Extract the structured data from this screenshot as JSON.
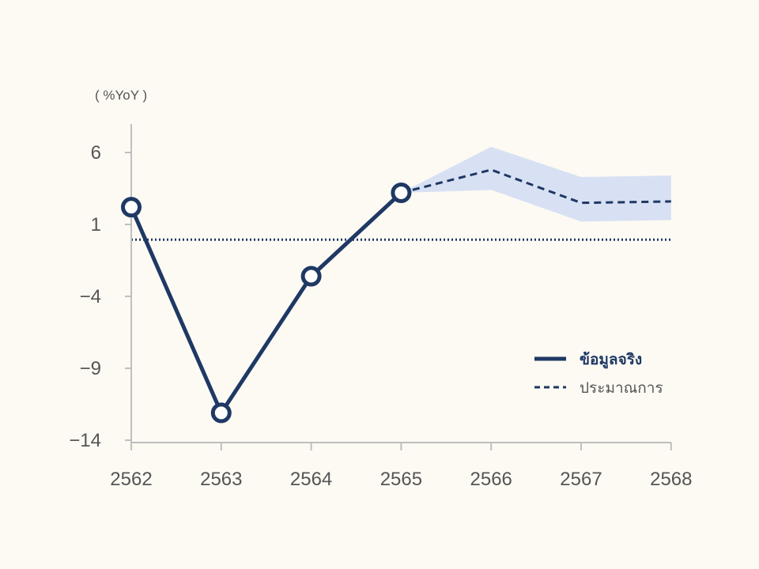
{
  "chart_data": {
    "type": "line",
    "unit_label": "( %YoY )",
    "x": [
      "2562",
      "2563",
      "2564",
      "2565",
      "2566",
      "2567",
      "2568"
    ],
    "y_ticks": [
      6,
      1,
      -4,
      -9,
      -14
    ],
    "ylim": [
      -14,
      8
    ],
    "grid": false,
    "reference_line": {
      "y": 0,
      "style": "dotted"
    },
    "series": [
      {
        "name": "ข้อมูลจริง",
        "style": "solid",
        "x": [
          "2562",
          "2563",
          "2564",
          "2565"
        ],
        "values": [
          2.2,
          -12.1,
          -2.6,
          3.2
        ]
      },
      {
        "name": "ประมาณการ",
        "style": "dashed",
        "x": [
          "2565",
          "2566",
          "2567",
          "2568"
        ],
        "values": [
          3.2,
          4.8,
          2.5,
          2.6
        ]
      }
    ],
    "forecast_band": {
      "x": [
        "2565",
        "2566",
        "2567",
        "2568"
      ],
      "lower": [
        3.2,
        3.4,
        1.2,
        1.3
      ],
      "upper": [
        3.2,
        6.4,
        4.3,
        4.4
      ]
    },
    "legend_position": "right",
    "colors": {
      "line": "#1f3864",
      "band": "#d8e1f3",
      "axis": "#bfbfbf",
      "marker_fill": "#ffffff"
    }
  }
}
